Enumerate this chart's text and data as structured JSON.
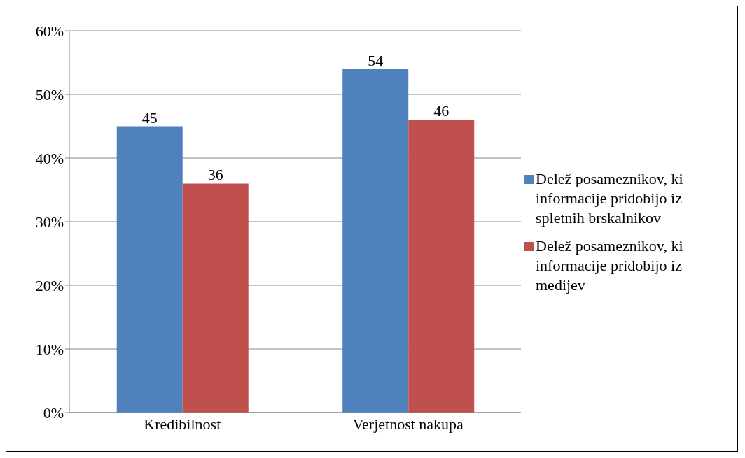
{
  "chart_data": {
    "type": "bar",
    "categories": [
      "Kredibilnost",
      "Verjetnost nakupa"
    ],
    "series": [
      {
        "name": "Delež posameznikov, ki informacije pridobijo iz spletnih brskalnikov",
        "color": "#4f81bd",
        "values": [
          45,
          54
        ]
      },
      {
        "name": "Delež posameznikov, ki informacije pridobijo iz medijev",
        "color": "#c0504d",
        "values": [
          36,
          46
        ]
      }
    ],
    "ylim": [
      0,
      60
    ],
    "yticks": [
      {
        "value": 0,
        "label": "0%"
      },
      {
        "value": 10,
        "label": "10%"
      },
      {
        "value": 20,
        "label": "20%"
      },
      {
        "value": 30,
        "label": "30%"
      },
      {
        "value": 40,
        "label": "40%"
      },
      {
        "value": 50,
        "label": "50%"
      },
      {
        "value": 60,
        "label": "60%"
      }
    ],
    "grid": "y",
    "legend": "right",
    "data_labels": true
  }
}
